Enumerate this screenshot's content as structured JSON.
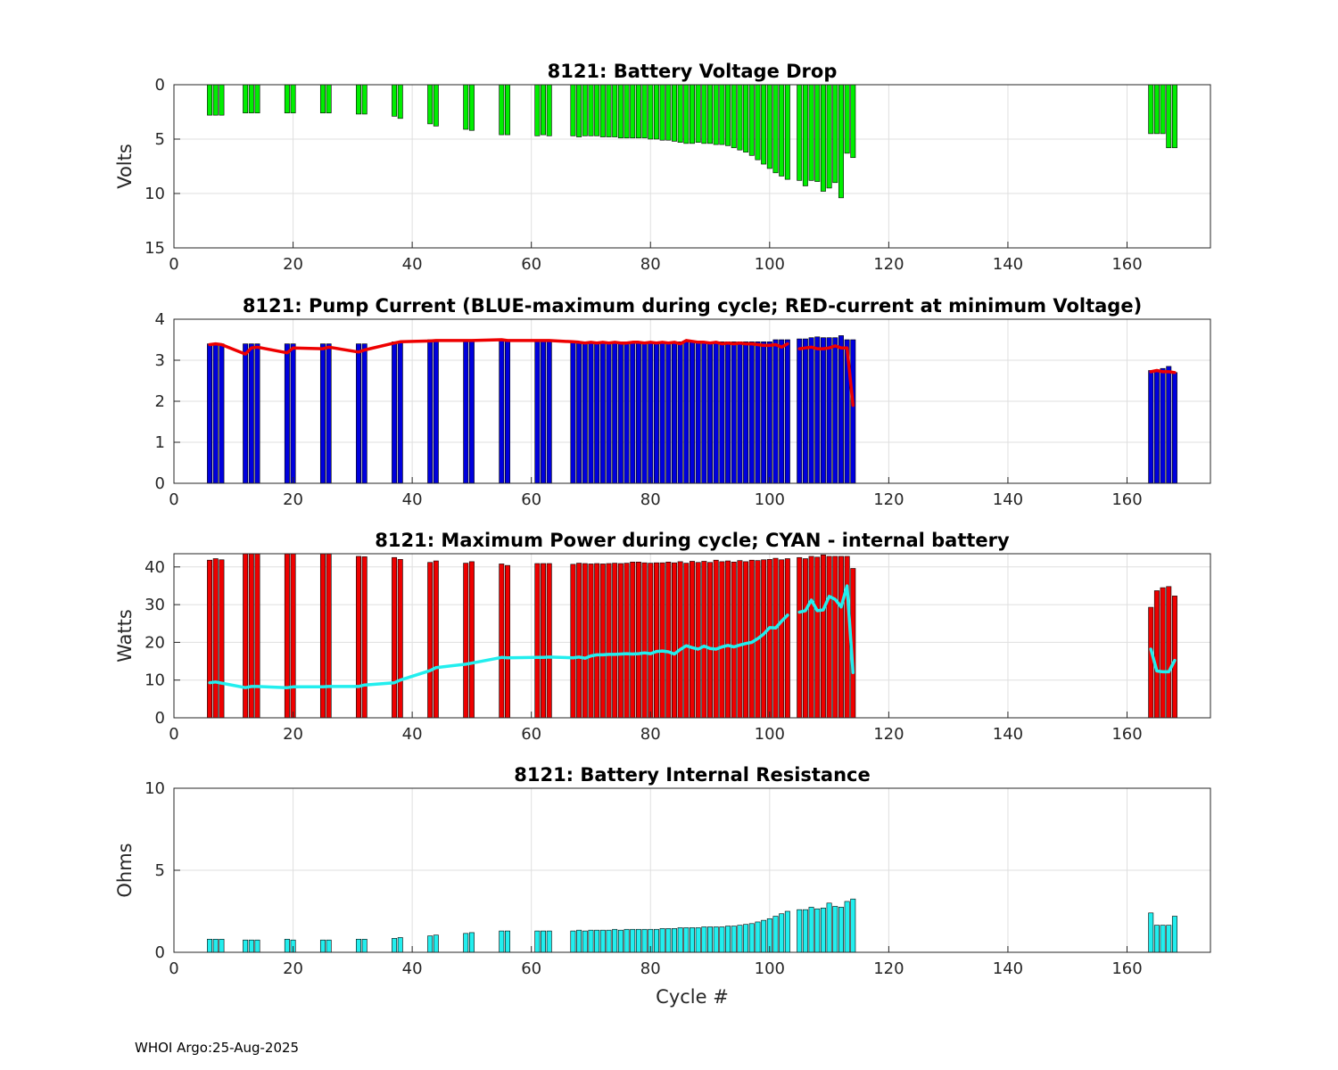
{
  "footer": "WHOI Argo:25-Aug-2025",
  "chart_data": [
    {
      "id": "voltage",
      "type": "bar",
      "title": "8121: Battery Voltage Drop",
      "ylabel": "Volts",
      "xlabel": "",
      "xlim": [
        0,
        174
      ],
      "ylim": [
        0,
        15
      ],
      "y_reversed": true,
      "xticks": [
        0,
        20,
        40,
        60,
        80,
        100,
        120,
        140,
        160
      ],
      "yticks": [
        0,
        5,
        10,
        15
      ],
      "grid": true,
      "bar_color": "#00ee00",
      "bars": {
        "x": [
          6,
          7,
          8,
          12,
          13,
          14,
          19,
          20,
          25,
          26,
          31,
          32,
          37,
          38,
          43,
          44,
          49,
          50,
          55,
          56,
          61,
          62,
          63,
          67,
          68,
          69,
          70,
          71,
          72,
          73,
          74,
          75,
          76,
          77,
          78,
          79,
          80,
          81,
          82,
          83,
          84,
          85,
          86,
          87,
          88,
          89,
          90,
          91,
          92,
          93,
          94,
          95,
          96,
          97,
          98,
          99,
          100,
          101,
          102,
          103,
          105,
          106,
          107,
          108,
          109,
          110,
          111,
          112,
          113,
          114,
          164,
          165,
          166,
          167,
          168
        ],
        "values": [
          2.8,
          2.8,
          2.8,
          2.6,
          2.6,
          2.6,
          2.6,
          2.6,
          2.6,
          2.6,
          2.7,
          2.7,
          2.9,
          3.1,
          3.6,
          3.8,
          4.1,
          4.2,
          4.6,
          4.6,
          4.7,
          4.6,
          4.7,
          4.7,
          4.8,
          4.7,
          4.7,
          4.7,
          4.8,
          4.8,
          4.8,
          4.9,
          4.9,
          4.9,
          4.9,
          4.9,
          5.0,
          5.0,
          5.1,
          5.1,
          5.2,
          5.3,
          5.4,
          5.4,
          5.3,
          5.4,
          5.4,
          5.5,
          5.5,
          5.6,
          5.8,
          6.0,
          6.2,
          6.5,
          6.9,
          7.3,
          7.7,
          8.1,
          8.4,
          8.7,
          8.8,
          9.3,
          8.8,
          8.9,
          9.8,
          9.5,
          9.0,
          10.4,
          6.3,
          6.7,
          4.5,
          4.5,
          4.5,
          5.8,
          5.8
        ]
      }
    },
    {
      "id": "current",
      "type": "bar+line",
      "title": "8121: Pump Current (BLUE-maximum during cycle; RED-current at minimum Voltage)",
      "ylabel": "",
      "xlabel": "",
      "xlim": [
        0,
        174
      ],
      "ylim": [
        0,
        4
      ],
      "xticks": [
        0,
        20,
        40,
        60,
        80,
        100,
        120,
        140,
        160
      ],
      "yticks": [
        0,
        1,
        2,
        3,
        4
      ],
      "grid": true,
      "bar_color": "#0000dd",
      "line_color": "#ee0000",
      "bars": {
        "x": [
          6,
          7,
          8,
          12,
          13,
          14,
          19,
          20,
          25,
          26,
          31,
          32,
          37,
          38,
          43,
          44,
          49,
          50,
          55,
          56,
          61,
          62,
          63,
          67,
          68,
          69,
          70,
          71,
          72,
          73,
          74,
          75,
          76,
          77,
          78,
          79,
          80,
          81,
          82,
          83,
          84,
          85,
          86,
          87,
          88,
          89,
          90,
          91,
          92,
          93,
          94,
          95,
          96,
          97,
          98,
          99,
          100,
          101,
          102,
          103,
          105,
          106,
          107,
          108,
          109,
          110,
          111,
          112,
          113,
          114,
          164,
          165,
          166,
          167,
          168
        ],
        "values": [
          3.4,
          3.4,
          3.4,
          3.4,
          3.4,
          3.4,
          3.4,
          3.4,
          3.4,
          3.4,
          3.4,
          3.4,
          3.45,
          3.45,
          3.5,
          3.5,
          3.5,
          3.5,
          3.5,
          3.5,
          3.5,
          3.5,
          3.5,
          3.45,
          3.45,
          3.45,
          3.45,
          3.45,
          3.45,
          3.45,
          3.45,
          3.45,
          3.45,
          3.45,
          3.45,
          3.45,
          3.45,
          3.45,
          3.45,
          3.45,
          3.45,
          3.45,
          3.45,
          3.45,
          3.45,
          3.45,
          3.45,
          3.45,
          3.45,
          3.45,
          3.45,
          3.45,
          3.45,
          3.45,
          3.45,
          3.45,
          3.45,
          3.5,
          3.5,
          3.5,
          3.52,
          3.52,
          3.55,
          3.57,
          3.55,
          3.55,
          3.55,
          3.6,
          3.5,
          3.5,
          2.75,
          2.75,
          2.8,
          2.85,
          2.7
        ]
      },
      "line": {
        "segments": [
          {
            "x": [
              6,
              7,
              8,
              12,
              13,
              14,
              19,
              20,
              25,
              26,
              31,
              32,
              37,
              38,
              43,
              44,
              49,
              50,
              55,
              56,
              61,
              62,
              63,
              67,
              68,
              69,
              70,
              71,
              72,
              73,
              74,
              75,
              76,
              77,
              78,
              79,
              80,
              81,
              82,
              83,
              84,
              85,
              86,
              87,
              88,
              89,
              90,
              91,
              92,
              93,
              94,
              95,
              96,
              97,
              98,
              99,
              100,
              101,
              102,
              103
            ],
            "y": [
              3.38,
              3.4,
              3.38,
              3.15,
              3.3,
              3.32,
              3.18,
              3.3,
              3.28,
              3.32,
              3.2,
              3.25,
              3.42,
              3.45,
              3.47,
              3.48,
              3.48,
              3.48,
              3.5,
              3.48,
              3.48,
              3.48,
              3.48,
              3.45,
              3.44,
              3.42,
              3.44,
              3.42,
              3.44,
              3.42,
              3.44,
              3.42,
              3.42,
              3.44,
              3.44,
              3.42,
              3.44,
              3.42,
              3.44,
              3.42,
              3.44,
              3.4,
              3.48,
              3.46,
              3.44,
              3.44,
              3.42,
              3.44,
              3.4,
              3.42,
              3.4,
              3.42,
              3.4,
              3.4,
              3.38,
              3.36,
              3.36,
              3.38,
              3.32,
              3.4
            ]
          },
          {
            "x": [
              105,
              106,
              107,
              108,
              109,
              110,
              111,
              112,
              113,
              114
            ],
            "y": [
              3.28,
              3.3,
              3.32,
              3.28,
              3.28,
              3.3,
              3.35,
              3.3,
              3.3,
              1.9
            ]
          },
          {
            "x": [
              164,
              165,
              166,
              167,
              168
            ],
            "y": [
              2.72,
              2.75,
              2.72,
              2.72,
              2.7
            ]
          }
        ]
      }
    },
    {
      "id": "power",
      "type": "bar+line",
      "title": "8121: Maximum Power during cycle; CYAN - internal battery",
      "ylabel": "Watts",
      "xlabel": "",
      "xlim": [
        0,
        174
      ],
      "ylim": [
        0,
        43.5
      ],
      "xticks": [
        0,
        20,
        40,
        60,
        80,
        100,
        120,
        140,
        160
      ],
      "yticks": [
        0,
        10,
        20,
        30,
        40
      ],
      "grid": true,
      "bar_color": "#ee0000",
      "line_color": "#22eeee",
      "bars": {
        "x": [
          6,
          7,
          8,
          12,
          13,
          14,
          19,
          20,
          25,
          26,
          31,
          32,
          37,
          38,
          43,
          44,
          49,
          50,
          55,
          56,
          61,
          62,
          63,
          67,
          68,
          69,
          70,
          71,
          72,
          73,
          74,
          75,
          76,
          77,
          78,
          79,
          80,
          81,
          82,
          83,
          84,
          85,
          86,
          87,
          88,
          89,
          90,
          91,
          92,
          93,
          94,
          95,
          96,
          97,
          98,
          99,
          100,
          101,
          102,
          103,
          105,
          106,
          107,
          108,
          109,
          110,
          111,
          112,
          113,
          114,
          164,
          165,
          166,
          167,
          168
        ],
        "values": [
          41.8,
          42.2,
          41.9,
          43.5,
          43.5,
          43.5,
          43.5,
          43.5,
          43.5,
          43.5,
          42.8,
          42.7,
          42.5,
          42.0,
          41.2,
          41.6,
          41.0,
          41.4,
          40.8,
          40.4,
          40.9,
          40.9,
          40.9,
          40.7,
          41.0,
          40.9,
          40.8,
          40.9,
          40.8,
          40.9,
          41.0,
          40.9,
          41.0,
          41.3,
          41.3,
          41.1,
          41.0,
          41.1,
          41.1,
          41.3,
          41.1,
          41.4,
          41.0,
          41.5,
          41.2,
          41.5,
          41.2,
          41.8,
          41.4,
          41.6,
          41.3,
          41.7,
          41.4,
          41.8,
          41.7,
          41.9,
          42.0,
          42.3,
          41.9,
          42.2,
          42.5,
          42.2,
          42.8,
          42.6,
          43.2,
          42.8,
          42.8,
          42.8,
          42.8,
          39.6,
          29.3,
          33.7,
          34.5,
          34.8,
          32.3
        ]
      },
      "line": {
        "segments": [
          {
            "x": [
              6,
              7,
              8,
              12,
              13,
              14,
              19,
              20,
              25,
              26,
              31,
              32,
              37,
              38,
              43,
              44,
              49,
              50,
              55,
              56,
              61,
              62,
              63,
              67,
              68,
              69,
              70,
              71,
              72,
              73,
              74,
              75,
              76,
              77,
              78,
              79,
              80,
              81,
              82,
              83,
              84,
              85,
              86,
              87,
              88,
              89,
              90,
              91,
              92,
              93,
              94,
              95,
              96,
              97,
              98,
              99,
              100,
              101,
              102,
              103
            ],
            "y": [
              9.3,
              9.5,
              9.2,
              8.0,
              8.3,
              8.3,
              8.0,
              8.2,
              8.2,
              8.3,
              8.3,
              8.7,
              9.3,
              10.0,
              12.5,
              13.3,
              14.2,
              14.5,
              16.0,
              15.9,
              16.0,
              16.0,
              16.1,
              15.9,
              16.1,
              15.8,
              16.4,
              16.7,
              16.7,
              16.8,
              16.8,
              16.9,
              17.0,
              16.9,
              17.0,
              17.2,
              17.0,
              17.6,
              17.7,
              17.5,
              16.9,
              18.1,
              19.1,
              18.6,
              18.2,
              19.0,
              18.4,
              18.2,
              18.8,
              19.2,
              18.8,
              19.3,
              19.7,
              20.0,
              21.0,
              22.2,
              23.9,
              23.8,
              25.6,
              27.2
            ]
          },
          {
            "x": [
              105,
              106,
              107,
              108,
              109,
              110,
              111,
              112,
              113,
              114
            ],
            "y": [
              28.0,
              28.4,
              31.2,
              28.4,
              28.6,
              32.2,
              31.4,
              29.4,
              35.0,
              12.0
            ]
          },
          {
            "x": [
              164,
              165,
              166,
              167,
              168
            ],
            "y": [
              18.2,
              12.4,
              12.2,
              12.2,
              15.2
            ]
          }
        ]
      }
    },
    {
      "id": "resistance",
      "type": "bar",
      "title": "8121: Battery Internal Resistance",
      "ylabel": "Ohms",
      "xlabel": "Cycle #",
      "xlim": [
        0,
        174
      ],
      "ylim": [
        0,
        10
      ],
      "xticks": [
        0,
        20,
        40,
        60,
        80,
        100,
        120,
        140,
        160
      ],
      "yticks": [
        0,
        5,
        10
      ],
      "grid": true,
      "bar_color": "#22eeee",
      "bars": {
        "x": [
          6,
          7,
          8,
          12,
          13,
          14,
          19,
          20,
          25,
          26,
          31,
          32,
          37,
          38,
          43,
          44,
          49,
          50,
          55,
          56,
          61,
          62,
          63,
          67,
          68,
          69,
          70,
          71,
          72,
          73,
          74,
          75,
          76,
          77,
          78,
          79,
          80,
          81,
          82,
          83,
          84,
          85,
          86,
          87,
          88,
          89,
          90,
          91,
          92,
          93,
          94,
          95,
          96,
          97,
          98,
          99,
          100,
          101,
          102,
          103,
          105,
          106,
          107,
          108,
          109,
          110,
          111,
          112,
          113,
          114,
          164,
          165,
          166,
          167,
          168
        ],
        "values": [
          0.8,
          0.8,
          0.8,
          0.75,
          0.75,
          0.75,
          0.8,
          0.75,
          0.75,
          0.75,
          0.8,
          0.8,
          0.85,
          0.9,
          1.0,
          1.05,
          1.15,
          1.2,
          1.3,
          1.3,
          1.3,
          1.3,
          1.3,
          1.3,
          1.35,
          1.3,
          1.35,
          1.35,
          1.35,
          1.35,
          1.4,
          1.35,
          1.4,
          1.4,
          1.4,
          1.4,
          1.4,
          1.4,
          1.45,
          1.45,
          1.45,
          1.5,
          1.5,
          1.5,
          1.5,
          1.55,
          1.55,
          1.55,
          1.55,
          1.6,
          1.6,
          1.65,
          1.7,
          1.75,
          1.85,
          1.95,
          2.05,
          2.2,
          2.35,
          2.5,
          2.6,
          2.6,
          2.75,
          2.65,
          2.7,
          3.0,
          2.8,
          2.75,
          3.1,
          3.25,
          2.4,
          1.65,
          1.65,
          1.65,
          2.2
        ]
      }
    }
  ]
}
